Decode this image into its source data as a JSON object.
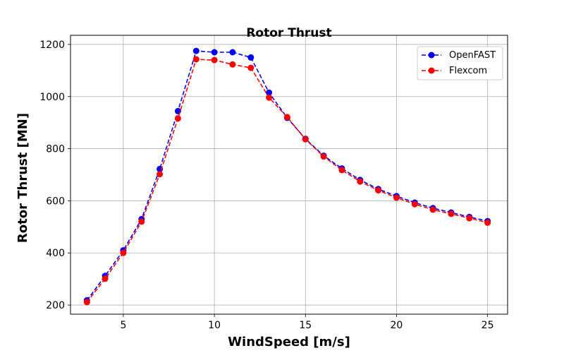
{
  "chart_data": {
    "type": "line",
    "title": "Rotor Thrust",
    "xlabel": "WindSpeed [m/s]",
    "ylabel": "Rotor Thrust [MN]",
    "xlim": [
      2.1,
      26.1
    ],
    "ylim": [
      165,
      1235
    ],
    "xticks": [
      5,
      10,
      15,
      20,
      25
    ],
    "yticks": [
      200,
      400,
      600,
      800,
      1000,
      1200
    ],
    "grid": true,
    "legend_position": "top-right",
    "x": [
      3,
      4,
      5,
      6,
      7,
      8,
      9,
      10,
      11,
      12,
      13,
      14,
      15,
      16,
      17,
      18,
      19,
      20,
      21,
      22,
      23,
      24,
      25
    ],
    "series": [
      {
        "name": "OpenFAST",
        "color": "#0000ff",
        "values": [
          218,
          312,
          410,
          530,
          722,
          944,
          1175,
          1170,
          1170,
          1150,
          1015,
          918,
          838,
          773,
          724,
          680,
          645,
          618,
          593,
          572,
          555,
          538,
          522
        ]
      },
      {
        "name": "Flexcom",
        "color": "#ff0000",
        "values": [
          211,
          301,
          400,
          520,
          702,
          916,
          1143,
          1140,
          1123,
          1110,
          996,
          921,
          836,
          770,
          718,
          674,
          640,
          612,
          587,
          566,
          550,
          533,
          516
        ]
      }
    ]
  }
}
